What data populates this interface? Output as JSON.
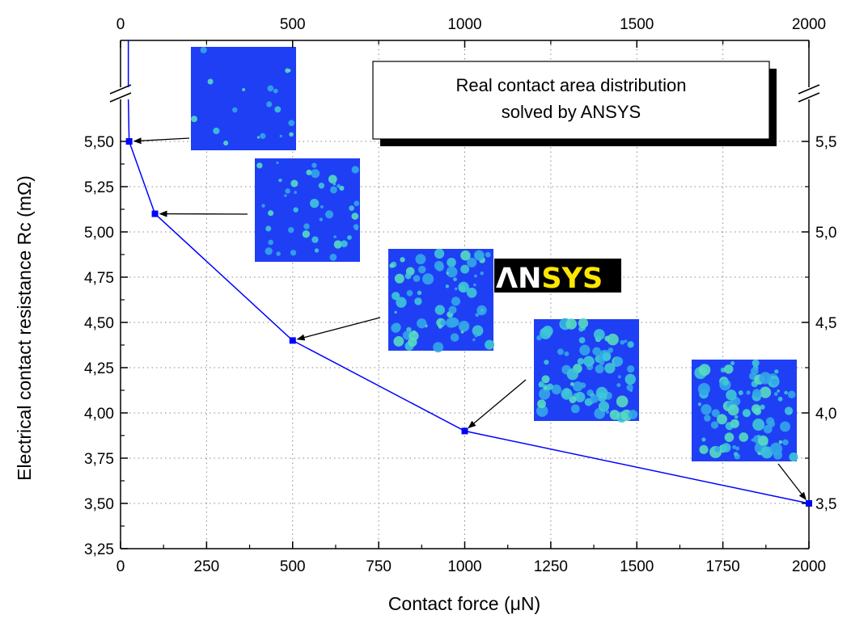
{
  "chart_data": {
    "type": "line",
    "xlabel": "Contact force (μN)",
    "ylabel": "Electrical contact resistance Rc (mΩ)",
    "xlim": [
      0,
      2000
    ],
    "ylim": [
      3.25,
      5.8
    ],
    "x_ticks_bottom": [
      "0",
      "250",
      "500",
      "750",
      "1000",
      "1250",
      "1500",
      "1750",
      "2000"
    ],
    "x_ticks_top": [
      "0",
      "500",
      "1000",
      "1500",
      "2000"
    ],
    "y_ticks_left": [
      "3,25",
      "3,50",
      "3,75",
      "4,00",
      "4,25",
      "4,50",
      "4,75",
      "5,00",
      "5,25",
      "5,50"
    ],
    "y_ticks_right": [
      "3,5",
      "4,0",
      "4,5",
      "5,0",
      "5,5"
    ],
    "grid": true,
    "axis_break": true,
    "series": [
      {
        "color": "#0000ff",
        "marker": "square",
        "x": [
          25,
          100,
          500,
          1000,
          2000
        ],
        "y": [
          5.5,
          5.1,
          4.4,
          3.9,
          3.5
        ]
      }
    ],
    "annotation_box": {
      "line1": "Real contact area distribution",
      "line2": "solved by ANSYS"
    },
    "logo": {
      "part1": "ΛN",
      "part2": "SYS"
    },
    "insets": [
      {
        "at_x": 25,
        "at_y": 5.5,
        "density": 0.12
      },
      {
        "at_x": 100,
        "at_y": 5.1,
        "density": 0.3
      },
      {
        "at_x": 500,
        "at_y": 4.4,
        "density": 0.5
      },
      {
        "at_x": 1000,
        "at_y": 3.9,
        "density": 0.55
      },
      {
        "at_x": 2000,
        "at_y": 3.5,
        "density": 0.6
      }
    ]
  }
}
